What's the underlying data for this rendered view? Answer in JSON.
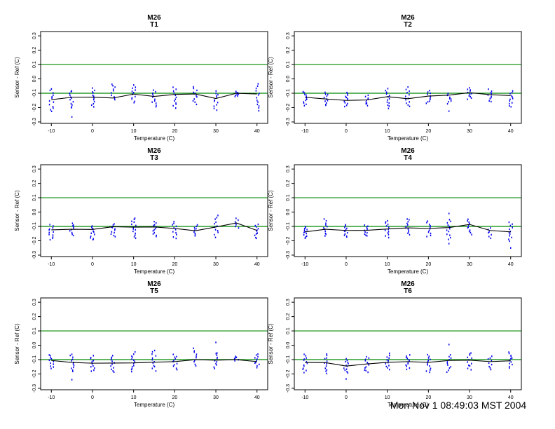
{
  "page": {
    "background": "#ffffff",
    "timestamp": "Mon Nov  1 08:49:03 MST 2004"
  },
  "colors": {
    "scatter_points": "#0000EE",
    "mean_line": "#000000",
    "threshold_line": "#008B00",
    "axis": "#000000"
  },
  "axes": {
    "xlabel": "Temperature (C)",
    "ylabel": "Sensor - Ref (C)",
    "x_ticks": [
      -10,
      0,
      10,
      20,
      30,
      40
    ],
    "y_ticks": [
      0.3,
      0.2,
      0.1,
      0,
      -0.1,
      -0.2,
      -0.3
    ],
    "y_tick_labels": [
      "0.3",
      "0.2",
      "0.1",
      "0.0",
      "-0.1",
      "-0.2",
      "-0.3"
    ],
    "xlim": [
      -12.6,
      42.6
    ],
    "ylim": [
      -0.31,
      0.33
    ],
    "thresholds": [
      0.1,
      -0.1
    ],
    "grid": "off"
  },
  "chart_data": [
    {
      "type": "scatter",
      "title": "M26",
      "subtitle": "T1",
      "xlabel": "Temperature (C)",
      "ylabel": "Sensor - Ref (C)",
      "x": [
        -10,
        -5,
        0,
        5,
        10,
        15,
        20,
        25,
        30,
        35,
        40
      ],
      "mean_line": [
        -0.145,
        -0.128,
        -0.127,
        -0.133,
        -0.106,
        -0.122,
        -0.108,
        -0.105,
        -0.137,
        -0.1,
        -0.105
      ],
      "scatter_ranges": [
        [
          -0.235,
          -0.065,
          13
        ],
        [
          -0.21,
          -0.075,
          12
        ],
        [
          -0.2,
          -0.06,
          12
        ],
        [
          -0.155,
          -0.03,
          10
        ],
        [
          -0.17,
          -0.04,
          12
        ],
        [
          -0.2,
          -0.07,
          12
        ],
        [
          -0.21,
          -0.055,
          12
        ],
        [
          -0.18,
          -0.05,
          11
        ],
        [
          -0.22,
          -0.08,
          12
        ],
        [
          -0.125,
          -0.085,
          9
        ],
        [
          -0.23,
          -0.03,
          13
        ]
      ],
      "outliers": [
        [
          -5,
          -0.265
        ]
      ]
    },
    {
      "type": "scatter",
      "title": "M26",
      "subtitle": "T2",
      "xlabel": "Temperature (C)",
      "ylabel": "Sensor - Ref (C)",
      "x": [
        -10,
        -5,
        0,
        5,
        10,
        15,
        20,
        25,
        30,
        35,
        40
      ],
      "mean_line": [
        -0.128,
        -0.14,
        -0.15,
        -0.147,
        -0.124,
        -0.138,
        -0.12,
        -0.113,
        -0.096,
        -0.11,
        -0.116
      ],
      "scatter_ranges": [
        [
          -0.19,
          -0.085,
          12
        ],
        [
          -0.19,
          -0.09,
          11
        ],
        [
          -0.195,
          -0.09,
          12
        ],
        [
          -0.19,
          -0.11,
          9
        ],
        [
          -0.21,
          -0.065,
          13
        ],
        [
          -0.2,
          -0.055,
          12
        ],
        [
          -0.175,
          -0.08,
          11
        ],
        [
          -0.175,
          -0.095,
          9
        ],
        [
          -0.145,
          -0.06,
          11
        ],
        [
          -0.165,
          -0.07,
          10
        ],
        [
          -0.2,
          -0.08,
          12
        ]
      ],
      "outliers": [
        [
          25,
          -0.225
        ]
      ]
    },
    {
      "type": "scatter",
      "title": "M26",
      "subtitle": "T3",
      "xlabel": "Temperature (C)",
      "ylabel": "Sensor - Ref (C)",
      "x": [
        -10,
        -5,
        0,
        5,
        10,
        15,
        20,
        25,
        30,
        35,
        40
      ],
      "mean_line": [
        -0.124,
        -0.12,
        -0.121,
        -0.102,
        -0.105,
        -0.104,
        -0.114,
        -0.13,
        -0.104,
        -0.076,
        -0.128
      ],
      "scatter_ranges": [
        [
          -0.195,
          -0.085,
          12
        ],
        [
          -0.165,
          -0.075,
          10
        ],
        [
          -0.2,
          -0.09,
          12
        ],
        [
          -0.175,
          -0.08,
          11
        ],
        [
          -0.185,
          -0.035,
          14
        ],
        [
          -0.175,
          -0.065,
          12
        ],
        [
          -0.19,
          -0.06,
          11
        ],
        [
          -0.17,
          -0.085,
          9
        ],
        [
          -0.18,
          -0.02,
          12
        ],
        [
          -0.115,
          -0.04,
          7
        ],
        [
          -0.19,
          -0.08,
          11
        ]
      ],
      "outliers": []
    },
    {
      "type": "scatter",
      "title": "M26",
      "subtitle": "T4",
      "xlabel": "Temperature (C)",
      "ylabel": "Sensor - Ref (C)",
      "x": [
        -10,
        -5,
        0,
        5,
        10,
        15,
        20,
        25,
        30,
        35,
        40
      ],
      "mean_line": [
        -0.138,
        -0.12,
        -0.128,
        -0.127,
        -0.118,
        -0.11,
        -0.114,
        -0.108,
        -0.086,
        -0.128,
        -0.138
      ],
      "scatter_ranges": [
        [
          -0.185,
          -0.095,
          12
        ],
        [
          -0.175,
          -0.045,
          11
        ],
        [
          -0.18,
          -0.085,
          12
        ],
        [
          -0.17,
          -0.09,
          11
        ],
        [
          -0.18,
          -0.055,
          13
        ],
        [
          -0.165,
          -0.04,
          12
        ],
        [
          -0.18,
          -0.06,
          11
        ],
        [
          -0.195,
          -0.045,
          12
        ],
        [
          -0.16,
          -0.045,
          11
        ],
        [
          -0.185,
          -0.105,
          7
        ],
        [
          -0.21,
          -0.065,
          12
        ]
      ],
      "outliers": [
        [
          25,
          -0.01
        ],
        [
          25,
          -0.22
        ],
        [
          40,
          -0.25
        ]
      ]
    },
    {
      "type": "scatter",
      "title": "M26",
      "subtitle": "T5",
      "xlabel": "Temperature (C)",
      "ylabel": "Sensor - Ref (C)",
      "x": [
        -10,
        -5,
        0,
        5,
        10,
        15,
        20,
        25,
        30,
        35,
        40
      ],
      "mean_line": [
        -0.106,
        -0.12,
        -0.125,
        -0.124,
        -0.123,
        -0.118,
        -0.114,
        -0.1,
        -0.104,
        -0.1,
        -0.114
      ],
      "scatter_ranges": [
        [
          -0.17,
          -0.06,
          11
        ],
        [
          -0.19,
          -0.055,
          12
        ],
        [
          -0.185,
          -0.07,
          12
        ],
        [
          -0.195,
          -0.065,
          12
        ],
        [
          -0.19,
          -0.045,
          13
        ],
        [
          -0.185,
          -0.03,
          12
        ],
        [
          -0.175,
          -0.06,
          11
        ],
        [
          -0.15,
          -0.015,
          10
        ],
        [
          -0.165,
          -0.045,
          11
        ],
        [
          -0.11,
          -0.075,
          6
        ],
        [
          -0.16,
          -0.055,
          11
        ]
      ],
      "outliers": [
        [
          -5,
          -0.24
        ],
        [
          30,
          0.02
        ]
      ]
    },
    {
      "type": "scatter",
      "title": "M26",
      "subtitle": "T6",
      "xlabel": "Temperature (C)",
      "ylabel": "Sensor - Ref (C)",
      "x": [
        -10,
        -5,
        0,
        5,
        10,
        15,
        20,
        25,
        30,
        35,
        40
      ],
      "mean_line": [
        -0.12,
        -0.121,
        -0.145,
        -0.13,
        -0.119,
        -0.114,
        -0.119,
        -0.106,
        -0.104,
        -0.114,
        -0.108
      ],
      "scatter_ranges": [
        [
          -0.195,
          -0.06,
          13
        ],
        [
          -0.2,
          -0.055,
          12
        ],
        [
          -0.2,
          -0.09,
          12
        ],
        [
          -0.195,
          -0.075,
          12
        ],
        [
          -0.175,
          -0.055,
          12
        ],
        [
          -0.17,
          -0.06,
          12
        ],
        [
          -0.195,
          -0.06,
          13
        ],
        [
          -0.19,
          -0.06,
          11
        ],
        [
          -0.175,
          -0.045,
          12
        ],
        [
          -0.175,
          -0.07,
          9
        ],
        [
          -0.16,
          -0.045,
          12
        ]
      ],
      "outliers": [
        [
          0,
          -0.235
        ],
        [
          25,
          0.005
        ]
      ]
    }
  ]
}
